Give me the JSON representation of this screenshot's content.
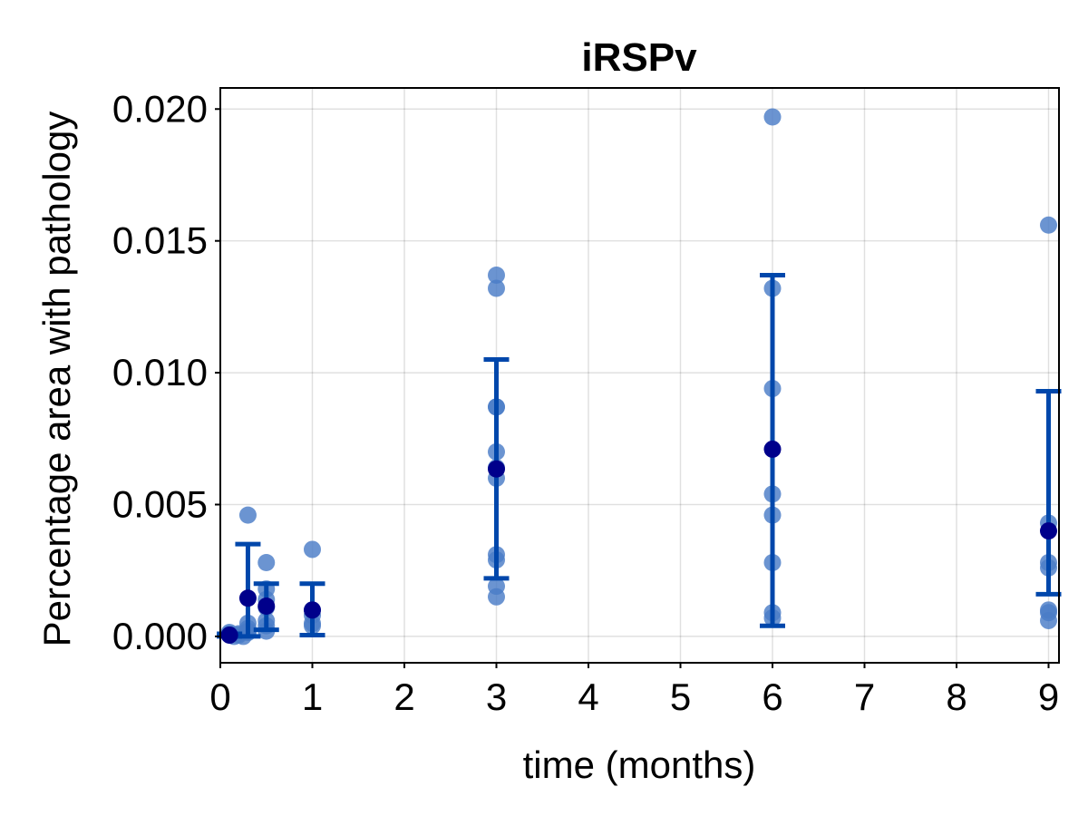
{
  "chart_data": {
    "type": "scatter",
    "title": "iRSPv",
    "xlabel": "time (months)",
    "ylabel": "Percentage area with pathology",
    "xlim": [
      0,
      9.1
    ],
    "ylim": [
      -0.001,
      0.0208
    ],
    "xticks": [
      0,
      1,
      2,
      3,
      4,
      5,
      6,
      7,
      8,
      9
    ],
    "yticks": [
      0.0,
      0.005,
      0.01,
      0.015,
      0.02
    ],
    "ytick_labels": [
      "0.000",
      "0.005",
      "0.010",
      "0.015",
      "0.020"
    ],
    "grid": true,
    "colors": {
      "points": "#4a7cc7",
      "mean": "#00008b",
      "error_bars": "#0047ab"
    },
    "points": [
      {
        "x": 0.1,
        "y": 0.00015
      },
      {
        "x": 0.1,
        "y": 0.0001
      },
      {
        "x": 0.1,
        "y": 5e-05
      },
      {
        "x": 0.15,
        "y": 0.0
      },
      {
        "x": 0.2,
        "y": 5e-05
      },
      {
        "x": 0.2,
        "y": 0.0001
      },
      {
        "x": 0.25,
        "y": 0.0
      },
      {
        "x": 0.3,
        "y": 0.0046
      },
      {
        "x": 0.3,
        "y": 0.0005
      },
      {
        "x": 0.3,
        "y": 0.0003
      },
      {
        "x": 0.3,
        "y": 0.0002
      },
      {
        "x": 0.3,
        "y": 0.00015
      },
      {
        "x": 0.5,
        "y": 0.0028
      },
      {
        "x": 0.5,
        "y": 0.0018
      },
      {
        "x": 0.5,
        "y": 0.0014
      },
      {
        "x": 0.5,
        "y": 0.0011
      },
      {
        "x": 0.5,
        "y": 0.0006
      },
      {
        "x": 0.5,
        "y": 0.0004
      },
      {
        "x": 0.5,
        "y": 0.0002
      },
      {
        "x": 1,
        "y": 0.0033
      },
      {
        "x": 1,
        "y": 0.001
      },
      {
        "x": 1,
        "y": 0.0008
      },
      {
        "x": 1,
        "y": 0.0005
      },
      {
        "x": 1,
        "y": 0.0004
      },
      {
        "x": 3,
        "y": 0.0137
      },
      {
        "x": 3,
        "y": 0.0132
      },
      {
        "x": 3,
        "y": 0.0087
      },
      {
        "x": 3,
        "y": 0.0087
      },
      {
        "x": 3,
        "y": 0.007
      },
      {
        "x": 3,
        "y": 0.0064
      },
      {
        "x": 3,
        "y": 0.006
      },
      {
        "x": 3,
        "y": 0.0031
      },
      {
        "x": 3,
        "y": 0.0029
      },
      {
        "x": 3,
        "y": 0.0019
      },
      {
        "x": 3,
        "y": 0.0015
      },
      {
        "x": 6,
        "y": 0.0197
      },
      {
        "x": 6,
        "y": 0.0132
      },
      {
        "x": 6,
        "y": 0.0094
      },
      {
        "x": 6,
        "y": 0.0054
      },
      {
        "x": 6,
        "y": 0.0046
      },
      {
        "x": 6,
        "y": 0.0028
      },
      {
        "x": 6,
        "y": 0.0009
      },
      {
        "x": 6,
        "y": 0.0007
      },
      {
        "x": 9,
        "y": 0.0156
      },
      {
        "x": 9,
        "y": 0.0043
      },
      {
        "x": 9,
        "y": 0.0028
      },
      {
        "x": 9,
        "y": 0.0026
      },
      {
        "x": 9,
        "y": 0.001
      },
      {
        "x": 9,
        "y": 0.0009
      },
      {
        "x": 9,
        "y": 0.0006
      }
    ],
    "summary": [
      {
        "x": 0.1,
        "mean": 5e-05,
        "low": 0.0,
        "high": 0.0001
      },
      {
        "x": 0.3,
        "mean": 0.00145,
        "low": 0.0,
        "high": 0.0035
      },
      {
        "x": 0.5,
        "mean": 0.00115,
        "low": 0.00025,
        "high": 0.002
      },
      {
        "x": 1,
        "mean": 0.001,
        "low": 5e-05,
        "high": 0.002
      },
      {
        "x": 3,
        "mean": 0.00635,
        "low": 0.0022,
        "high": 0.0105
      },
      {
        "x": 6,
        "mean": 0.0071,
        "low": 0.0004,
        "high": 0.0137
      },
      {
        "x": 9,
        "mean": 0.004,
        "low": 0.0016,
        "high": 0.0093
      }
    ]
  }
}
